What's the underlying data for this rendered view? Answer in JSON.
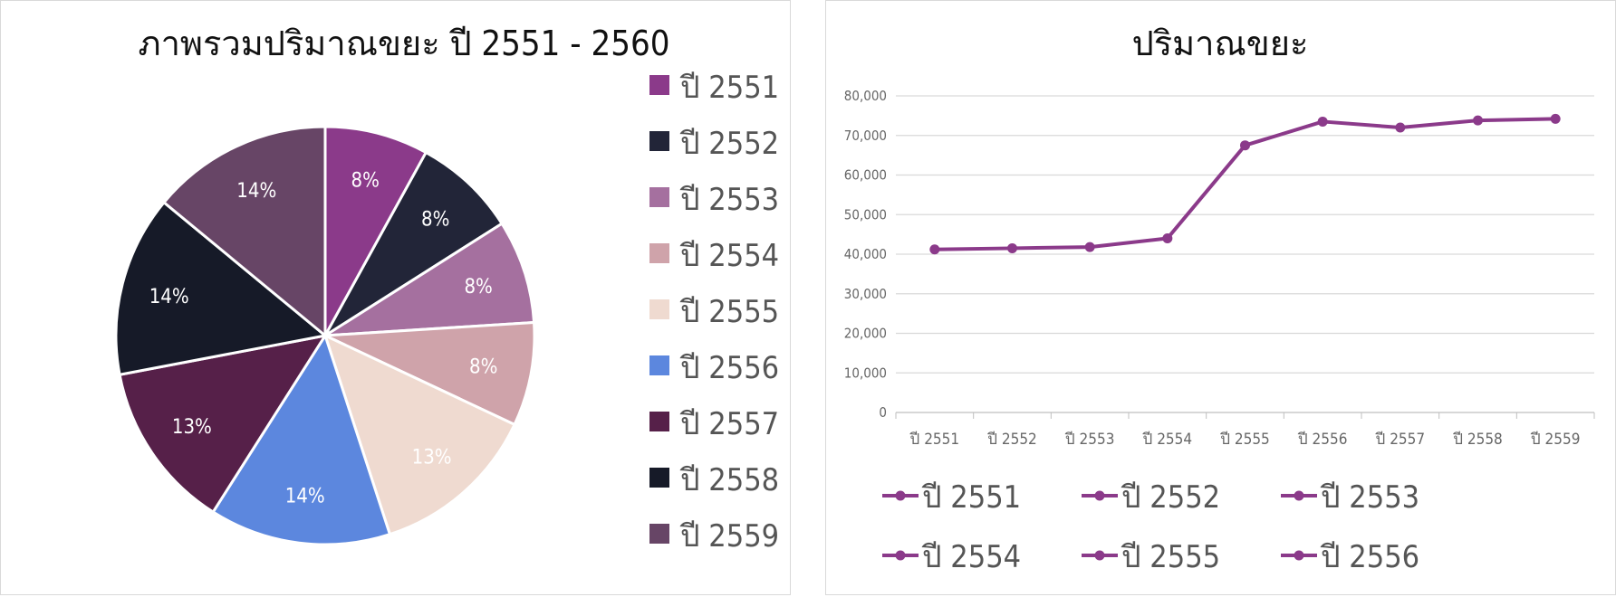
{
  "chart_data": [
    {
      "type": "pie",
      "title": "ภาพรวมปริมาณขยะ ปี 2551 - 2560",
      "categories": [
        "ปี 2551",
        "ปี 2552",
        "ปี 2553",
        "ปี 2554",
        "ปี 2555",
        "ปี 2556",
        "ปี 2557",
        "ปี 2558",
        "ปี 2559"
      ],
      "values": [
        8,
        8,
        8,
        8,
        13,
        14,
        13,
        14,
        14
      ],
      "labels": [
        "8%",
        "8%",
        "8%",
        "8%",
        "13%",
        "14%",
        "13%",
        "14%",
        "14%"
      ],
      "colors": [
        "#8b3a8a",
        "#222538",
        "#a5709f",
        "#cfa3aa",
        "#efdad0",
        "#5c87de",
        "#562049",
        "#161a28",
        "#674566"
      ],
      "legend": "right"
    },
    {
      "type": "line",
      "title": "ปริมาณขยะ",
      "categories": [
        "ปี 2551",
        "ปี 2552",
        "ปี 2553",
        "ปี 2554",
        "ปี 2555",
        "ปี 2556",
        "ปี 2557",
        "ปี 2558",
        "ปี 2559"
      ],
      "series": [
        {
          "values": [
            41200,
            41500,
            41800,
            44000,
            67500,
            73500,
            72000,
            73800,
            74200
          ]
        }
      ],
      "ylim": [
        0,
        80000
      ],
      "yticks": [
        "0",
        "10,000",
        "20,000",
        "30,000",
        "40,000",
        "50,000",
        "60,000",
        "70,000",
        "80,000"
      ],
      "grid": true,
      "line_color": "#8b3a8a",
      "legend": "bottom",
      "legend_entries": [
        "ปี 2551",
        "ปี 2552",
        "ปี 2553",
        "ปี 2554",
        "ปี 2555",
        "ปี 2556"
      ]
    }
  ]
}
